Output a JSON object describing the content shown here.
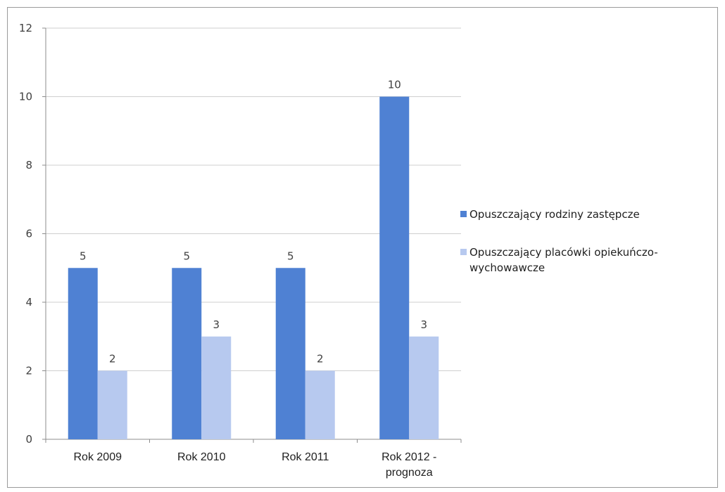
{
  "chart_data": {
    "type": "bar",
    "categories": [
      "Rok 2009",
      "Rok 2010",
      "Rok 2011",
      "Rok 2012 - prognoza"
    ],
    "category_lines": [
      [
        "Rok 2009"
      ],
      [
        "Rok 2010"
      ],
      [
        "Rok 2011"
      ],
      [
        "Rok 2012 -",
        "prognoza"
      ]
    ],
    "series": [
      {
        "name": "Opuszczający rodziny zastępcze",
        "values": [
          5,
          5,
          5,
          10
        ],
        "color": "#4f81d3"
      },
      {
        "name": "Opuszczający placówki opiekuńczo-wychowawcze",
        "values": [
          2,
          3,
          2,
          3
        ],
        "color": "#b7c9ef"
      }
    ],
    "legend_lines": [
      [
        "Opuszczający rodziny zastępcze"
      ],
      [
        "Opuszczający placówki opiekuńczo-",
        "wychowawcze"
      ]
    ],
    "yticks": [
      0,
      2,
      4,
      6,
      8,
      10,
      12
    ],
    "ylim": [
      0,
      12
    ],
    "grid": true,
    "legend_position": "right",
    "data_labels": true,
    "title": "",
    "xlabel": "",
    "ylabel": ""
  }
}
